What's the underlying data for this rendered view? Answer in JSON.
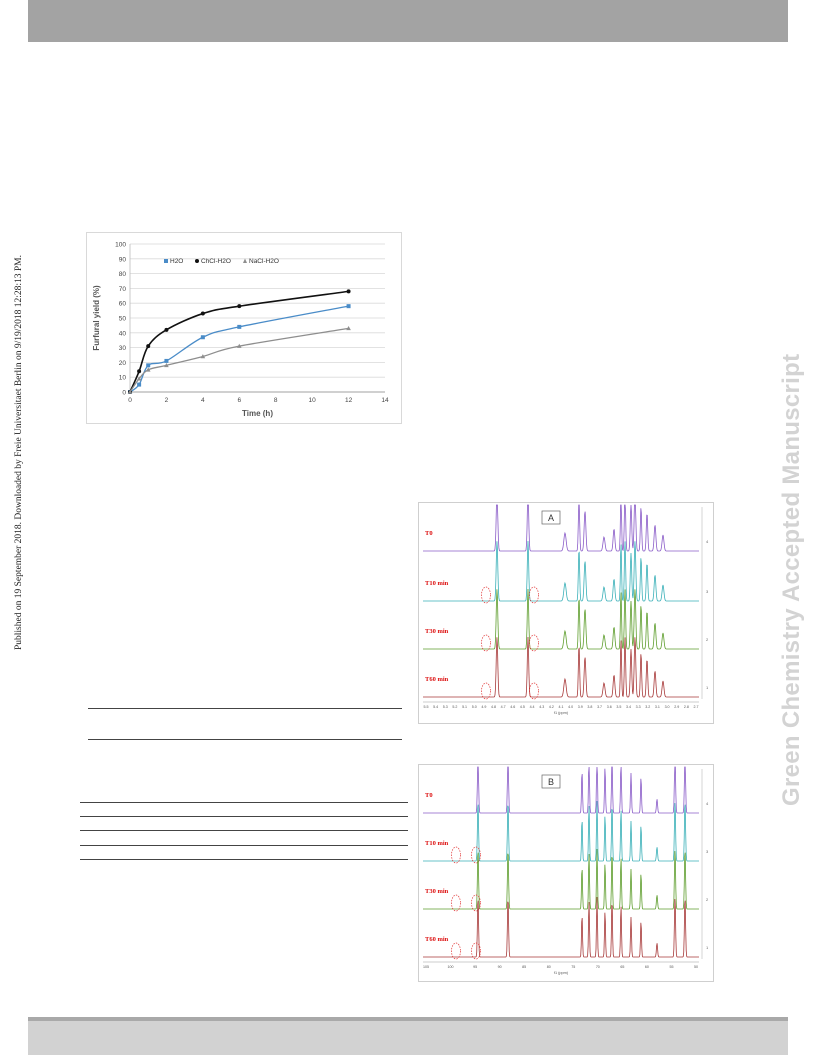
{
  "side_note": "Published on 19 September 2018. Downloaded by Freie Universitaet Berlin on 9/19/2018 12:28:13 PM.",
  "watermark": "Green Chemistry Accepted Manuscript",
  "chart_data": {
    "type": "line",
    "title": "",
    "xlabel": "Time (h)",
    "ylabel": "Furfural yield (%)",
    "xlim": [
      0,
      14
    ],
    "ylim": [
      0,
      100
    ],
    "xticks": [
      "0",
      "2",
      "4",
      "6",
      "8",
      "10",
      "12",
      "14"
    ],
    "yticks": [
      "0",
      "10",
      "20",
      "30",
      "40",
      "50",
      "60",
      "70",
      "80",
      "90",
      "100"
    ],
    "grid": true,
    "legend": "top-left",
    "series": [
      {
        "name": "H2O",
        "color": "#4a8cc8",
        "marker": "square",
        "x": [
          0,
          0.5,
          1,
          2,
          4,
          6,
          12
        ],
        "y": [
          0,
          5,
          18,
          21,
          37,
          44,
          58
        ]
      },
      {
        "name": "ChCl-H2O",
        "color": "#111111",
        "marker": "circle",
        "x": [
          0,
          0.5,
          1,
          2,
          4,
          6,
          12
        ],
        "y": [
          0,
          14,
          31,
          42,
          53,
          58,
          68
        ]
      },
      {
        "name": "NaCl-H2O",
        "color": "#8e8e8e",
        "marker": "triangle",
        "x": [
          0,
          0.5,
          1,
          2,
          4,
          6,
          12
        ],
        "y": [
          0,
          9,
          15,
          18,
          24,
          31,
          43
        ]
      }
    ]
  },
  "nmr_a": {
    "panel_label": "A",
    "traces": [
      "T0",
      "T10 min",
      "T30 min",
      "T60 min"
    ],
    "axis_label": "f1 (ppm)",
    "ticks": [
      "5.5",
      "5.4",
      "5.3",
      "5.2",
      "5.1",
      "5.0",
      "4.9",
      "4.8",
      "4.7",
      "4.6",
      "4.5",
      "4.4",
      "4.3",
      "4.2",
      "4.1",
      "4.0",
      "3.9",
      "3.8",
      "3.7",
      "3.6",
      "3.5",
      "3.4",
      "3.3",
      "3.2",
      "3.1",
      "3.0",
      "2.9",
      "2.8",
      "2.7"
    ],
    "right_ticks": [
      "4",
      "3",
      "2",
      "1"
    ],
    "colors": [
      "#8a5cc8",
      "#3ab0b8",
      "#5f9e2e",
      "#a83a3a"
    ]
  },
  "nmr_b": {
    "panel_label": "B",
    "traces": [
      "T0",
      "T10 min",
      "T30 min",
      "T60 min"
    ],
    "axis_label": "f1 (ppm)",
    "ticks": [
      "105",
      "100",
      "95",
      "90",
      "85",
      "80",
      "75",
      "70",
      "65",
      "60",
      "55",
      "50"
    ],
    "right_ticks": [
      "4",
      "3",
      "2",
      "1"
    ],
    "colors": [
      "#8a5cc8",
      "#3ab0b8",
      "#5f9e2e",
      "#a83a3a"
    ]
  }
}
